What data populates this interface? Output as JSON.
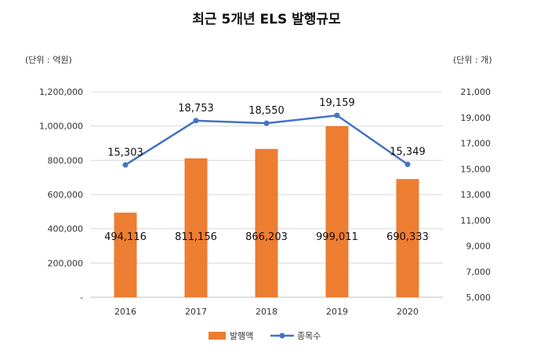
{
  "chart_data": {
    "type": "bar+line",
    "title": "최근 5개년 ELS 발행규모",
    "left_unit_label": "(단위 : 억원)",
    "right_unit_label": "(단위 : 개)",
    "categories": [
      "2016",
      "2017",
      "2018",
      "2019",
      "2020"
    ],
    "series": [
      {
        "name": "발행액",
        "type": "bar",
        "axis": "left",
        "color": "#ED7D31",
        "values": [
          494116,
          811156,
          866203,
          999011,
          690333
        ],
        "labels": [
          "494,116",
          "811,156",
          "866,203",
          "999,011",
          "690,333"
        ]
      },
      {
        "name": "종목수",
        "type": "line",
        "axis": "right",
        "color": "#4472C4",
        "values": [
          15303,
          18753,
          18550,
          19159,
          15349
        ],
        "labels": [
          "15,303",
          "18,753",
          "18,550",
          "19,159",
          "15,349"
        ]
      }
    ],
    "left_axis": {
      "min": 0,
      "max": 1200000,
      "step": 200000,
      "tick_labels": [
        "-",
        "200,000",
        "400,000",
        "600,000",
        "800,000",
        "1,000,000",
        "1,200,000"
      ]
    },
    "right_axis": {
      "min": 5000,
      "max": 21000,
      "step": 2000,
      "tick_labels": [
        "5,000",
        "7,000",
        "9,000",
        "11,000",
        "13,000",
        "15,000",
        "17,000",
        "19,000",
        "21,000"
      ]
    },
    "grid": true,
    "legend_position": "bottom"
  }
}
